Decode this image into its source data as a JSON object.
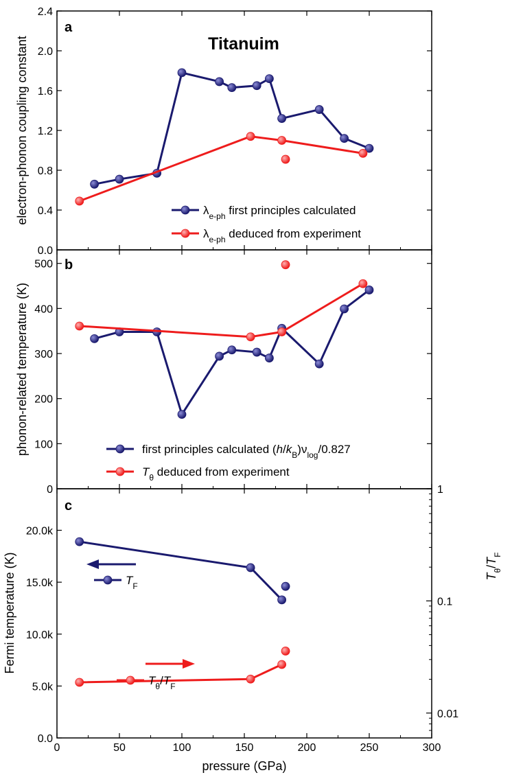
{
  "title": "Titanuim",
  "shared_x": {
    "label": "pressure (GPa)",
    "range": [
      0,
      300
    ],
    "ticks": [
      0,
      50,
      100,
      150,
      200,
      250,
      300
    ]
  },
  "panel_labels": [
    "a",
    "b",
    "c"
  ],
  "colors": {
    "navy": "#1a1a6e",
    "red": "#ee1c1c"
  },
  "chart_data": [
    {
      "panel": "a",
      "type": "line",
      "ylabel": "electron-phonon coupling constant",
      "ylim": [
        0,
        2.4
      ],
      "yticks": [
        "0.0",
        "0.4",
        "0.8",
        "1.2",
        "1.6",
        "2.0",
        "2.4"
      ],
      "legend_position": "bottom-right",
      "series": [
        {
          "legend_symbol": "λ",
          "legend_sub": "e-ph",
          "legend_text": " first principles calculated",
          "color": "#1a1a6e",
          "points": [
            [
              30,
              0.66
            ],
            [
              50,
              0.71
            ],
            [
              80,
              0.77
            ],
            [
              100,
              1.78
            ],
            [
              130,
              1.69
            ],
            [
              140,
              1.63
            ],
            [
              160,
              1.65
            ],
            [
              170,
              1.72
            ],
            [
              180,
              1.32
            ],
            [
              210,
              1.41
            ],
            [
              230,
              1.12
            ],
            [
              250,
              1.02
            ]
          ]
        },
        {
          "legend_symbol": "λ",
          "legend_sub": "e-ph",
          "legend_text": " deduced from experiment",
          "color": "#ee1c1c",
          "points": [
            [
              18,
              0.49
            ],
            [
              155,
              1.14
            ],
            [
              180,
              1.1
            ],
            [
              245,
              0.97
            ]
          ],
          "extra_points": [
            [
              183,
              0.91
            ]
          ]
        }
      ]
    },
    {
      "panel": "b",
      "type": "line",
      "ylabel": "phonon-related temperature (K)",
      "ylim": [
        0,
        530
      ],
      "yticks": [
        "0",
        "100",
        "200",
        "300",
        "400",
        "500"
      ],
      "legend_position": "bottom-right",
      "series": [
        {
          "legend_text": "first principles calculated (h/k",
          "legend_text_parts": [
            "first principles calculated (",
            "h",
            "/",
            "k",
            "B",
            ")ν",
            "log",
            "/0.827"
          ],
          "color": "#1a1a6e",
          "points": [
            [
              30,
              333
            ],
            [
              50,
              348
            ],
            [
              80,
              348
            ],
            [
              100,
              165
            ],
            [
              130,
              294
            ],
            [
              140,
              308
            ],
            [
              160,
              303
            ],
            [
              170,
              290
            ],
            [
              180,
              356
            ],
            [
              210,
              277
            ],
            [
              230,
              399
            ],
            [
              250,
              441
            ]
          ]
        },
        {
          "legend_text_parts": [
            "T",
            "θ",
            " deduced from experiment"
          ],
          "color": "#ee1c1c",
          "points": [
            [
              18,
              361
            ],
            [
              155,
              337
            ],
            [
              180,
              348
            ],
            [
              245,
              455
            ]
          ],
          "extra_points": [
            [
              183,
              497
            ]
          ]
        }
      ]
    },
    {
      "panel": "c",
      "type": "line",
      "ylabel": "Fermi temperature (K)",
      "ylim": [
        0,
        24000
      ],
      "yticks": [
        "0.0",
        "5.0k",
        "10.0k",
        "15.0k",
        "20.0k"
      ],
      "y2label_parts": [
        "T",
        "θ",
        "/",
        "T",
        "F"
      ],
      "y2scale": "log",
      "y2lim": [
        0.006,
        1
      ],
      "y2ticks": [
        "0.01",
        "0.1",
        "1"
      ],
      "series": [
        {
          "legend_parts": [
            "T",
            "F"
          ],
          "axis": "left",
          "color": "#1a1a6e",
          "points": [
            [
              18,
              18900
            ],
            [
              155,
              16400
            ],
            [
              180,
              13300
            ]
          ],
          "extra_points": [
            [
              183,
              14600
            ]
          ]
        },
        {
          "legend_parts": [
            "T",
            "θ",
            "/",
            "T",
            "F"
          ],
          "axis": "right",
          "color": "#ee1c1c",
          "points": [
            [
              18,
              0.0188
            ],
            [
              155,
              0.0201
            ],
            [
              180,
              0.0271
            ]
          ],
          "extra_points": [
            [
              183,
              0.0357
            ]
          ]
        }
      ]
    }
  ]
}
